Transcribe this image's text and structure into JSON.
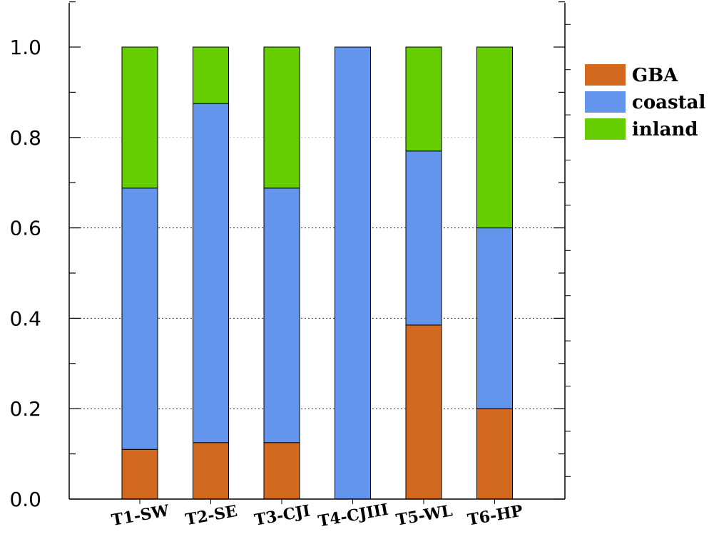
{
  "chart_data": {
    "type": "bar",
    "stacked": true,
    "categories": [
      "T1-SW",
      "T2-SE",
      "T3-CJI",
      "T4-CJIII",
      "T5-WL",
      "T6-HP"
    ],
    "series": [
      {
        "name": "GBA",
        "color": "#d2691e",
        "values": [
          0.11,
          0.125,
          0.125,
          0.0,
          0.385,
          0.2
        ]
      },
      {
        "name": "coastal",
        "color": "#6495ed",
        "values": [
          0.578,
          0.75,
          0.563,
          1.0,
          0.385,
          0.4
        ]
      },
      {
        "name": "inland",
        "color": "#66cd00",
        "values": [
          0.312,
          0.125,
          0.312,
          0.0,
          0.23,
          0.4
        ]
      }
    ],
    "yticks": [
      "0.0",
      "0.2",
      "0.4",
      "0.6",
      "0.8",
      "1.0"
    ],
    "ylim": [
      0,
      1.1
    ],
    "grid": "horizontal dotted at 0.2 intervals",
    "legend_position": "top-right",
    "title": "",
    "xlabel": "",
    "ylabel": ""
  }
}
